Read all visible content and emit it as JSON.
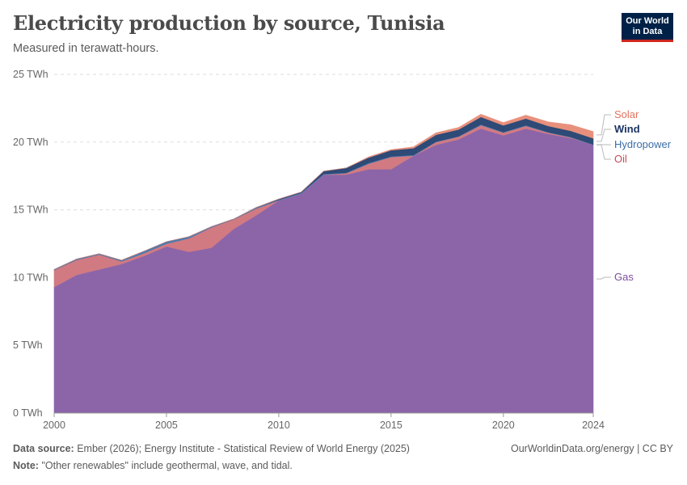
{
  "header": {
    "title": "Electricity production by source, Tunisia",
    "subtitle": "Measured in terawatt-hours."
  },
  "logo": {
    "line1": "Our World",
    "line2": "in Data"
  },
  "footer": {
    "source_label": "Data source:",
    "source_text": "Ember (2026); Energy Institute - Statistical Review of World Energy (2025)",
    "note_label": "Note:",
    "note_text": "\"Other renewables\" include geothermal, wave, and tidal.",
    "credit": "OurWorldinData.org/energy | CC BY"
  },
  "chart_data": {
    "type": "area",
    "stacked": true,
    "title": "Electricity production by source, Tunisia",
    "ylabel": "TWh",
    "unit": " TWh",
    "ylim": [
      0,
      25
    ],
    "yticks": [
      0,
      5,
      10,
      15,
      20,
      25
    ],
    "xlim": [
      2000,
      2024
    ],
    "xticks": [
      2000,
      2005,
      2010,
      2015,
      2020,
      2024
    ],
    "grid": true,
    "legend_placement": "right",
    "x": [
      2000,
      2001,
      2002,
      2003,
      2004,
      2005,
      2006,
      2007,
      2008,
      2009,
      2010,
      2011,
      2012,
      2013,
      2014,
      2015,
      2016,
      2017,
      2018,
      2019,
      2020,
      2021,
      2022,
      2023,
      2024
    ],
    "series": [
      {
        "name": "Gas",
        "color": "#8c65a9",
        "values": [
          9.3,
          10.2,
          10.6,
          11.0,
          11.6,
          12.3,
          11.9,
          12.2,
          13.6,
          14.6,
          15.7,
          16.2,
          17.6,
          17.6,
          18.0,
          18.0,
          19.0,
          19.8,
          20.2,
          21.0,
          20.5,
          21.0,
          20.6,
          20.3,
          19.8
        ]
      },
      {
        "name": "Oil",
        "color": "#d17a82",
        "values": [
          1.25,
          1.1,
          1.1,
          0.2,
          0.2,
          0.2,
          1.0,
          1.5,
          0.7,
          0.5,
          0.0,
          0.0,
          0.0,
          0.1,
          0.4,
          0.9,
          0.0,
          0.2,
          0.2,
          0.25,
          0.2,
          0.2,
          0.1,
          0.05,
          0.0
        ]
      },
      {
        "name": "Hydropower",
        "color": "#4c7bb0",
        "values": [
          0.05,
          0.07,
          0.06,
          0.08,
          0.15,
          0.15,
          0.12,
          0.06,
          0.03,
          0.08,
          0.05,
          0.07,
          0.06,
          0.04,
          0.06,
          0.05,
          0.05,
          0.04,
          0.03,
          0.06,
          0.04,
          0.04,
          0.04,
          0.03,
          0.03
        ]
      },
      {
        "name": "Wind",
        "color": "#2e4a76",
        "values": [
          0.0,
          0.0,
          0.0,
          0.0,
          0.0,
          0.0,
          0.0,
          0.0,
          0.0,
          0.0,
          0.05,
          0.05,
          0.2,
          0.35,
          0.4,
          0.45,
          0.5,
          0.5,
          0.5,
          0.55,
          0.5,
          0.5,
          0.45,
          0.45,
          0.45
        ]
      },
      {
        "name": "Solar",
        "color": "#e8907c",
        "values": [
          0.0,
          0.0,
          0.0,
          0.0,
          0.0,
          0.0,
          0.0,
          0.0,
          0.0,
          0.0,
          0.0,
          0.0,
          0.0,
          0.0,
          0.05,
          0.05,
          0.1,
          0.15,
          0.15,
          0.2,
          0.2,
          0.25,
          0.3,
          0.45,
          0.5
        ]
      }
    ],
    "legend_order": [
      "Solar",
      "Wind",
      "Hydropower",
      "Oil",
      "Gas"
    ],
    "label_colors": {
      "Solar": "#e0735e",
      "Wind": "#1c3563",
      "Hydropower": "#3c6ea8",
      "Oil": "#c74a5a",
      "Gas": "#7c4f9c"
    }
  }
}
